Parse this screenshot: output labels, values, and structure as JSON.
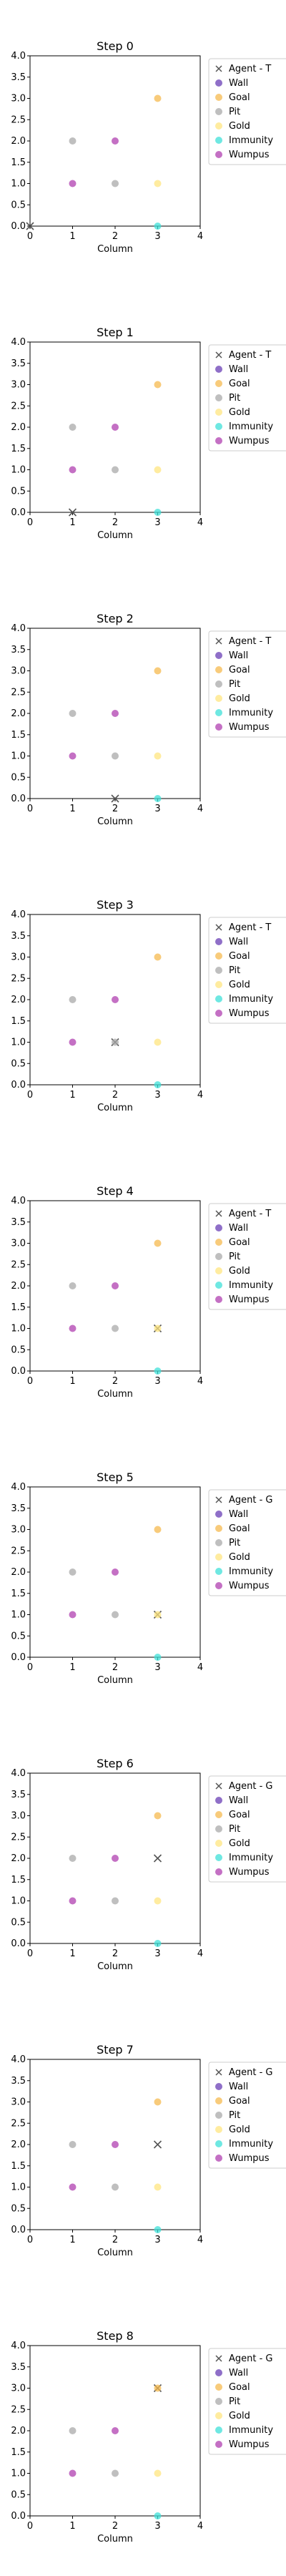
{
  "chart_data": [
    {
      "type": "scatter",
      "title": "Step 0",
      "xlabel": "Column",
      "ylabel": "",
      "xlim": [
        0,
        4
      ],
      "ylim": [
        0,
        4
      ],
      "xticks": [
        "0",
        "1",
        "2",
        "3",
        "4"
      ],
      "yticks": [
        "0.0",
        "0.5",
        "1.0",
        "1.5",
        "2.0",
        "2.5",
        "3.0",
        "3.5",
        "4.0"
      ],
      "legend": {
        "placement": "outside-right-top",
        "entries": [
          "Agent - T",
          "Wall",
          "Goal",
          "Pit",
          "Gold",
          "Immunity",
          "Wumpus"
        ]
      },
      "series": [
        {
          "name": "Agent - T",
          "marker": "x",
          "color": "#555555",
          "points": [
            [
              0,
              0
            ]
          ]
        },
        {
          "name": "Wall",
          "marker": "o",
          "color": "#6a3fb5",
          "points": []
        },
        {
          "name": "Goal",
          "marker": "o",
          "color": "#f5b94f",
          "points": [
            [
              3,
              3
            ]
          ]
        },
        {
          "name": "Pit",
          "marker": "o",
          "color": "#a9a9a9",
          "points": [
            [
              1,
              2
            ],
            [
              2,
              1
            ]
          ]
        },
        {
          "name": "Gold",
          "marker": "o",
          "color": "#ffe680",
          "points": [
            [
              3,
              1
            ]
          ]
        },
        {
          "name": "Immunity",
          "marker": "o",
          "color": "#3fe0d8",
          "points": [
            [
              3,
              0
            ]
          ]
        },
        {
          "name": "Wumpus",
          "marker": "o",
          "color": "#b040b0",
          "points": [
            [
              1,
              1
            ],
            [
              2,
              2
            ]
          ]
        }
      ]
    },
    {
      "type": "scatter",
      "title": "Step 1",
      "xlabel": "Column",
      "ylabel": "",
      "xlim": [
        0,
        4
      ],
      "ylim": [
        0,
        4
      ],
      "xticks": [
        "0",
        "1",
        "2",
        "3",
        "4"
      ],
      "yticks": [
        "0.0",
        "0.5",
        "1.0",
        "1.5",
        "2.0",
        "2.5",
        "3.0",
        "3.5",
        "4.0"
      ],
      "legend": {
        "placement": "outside-right-top",
        "entries": [
          "Agent - T",
          "Wall",
          "Goal",
          "Pit",
          "Gold",
          "Immunity",
          "Wumpus"
        ]
      },
      "series": [
        {
          "name": "Agent - T",
          "marker": "x",
          "color": "#555555",
          "points": [
            [
              1,
              0
            ]
          ]
        },
        {
          "name": "Wall",
          "marker": "o",
          "color": "#6a3fb5",
          "points": []
        },
        {
          "name": "Goal",
          "marker": "o",
          "color": "#f5b94f",
          "points": [
            [
              3,
              3
            ]
          ]
        },
        {
          "name": "Pit",
          "marker": "o",
          "color": "#a9a9a9",
          "points": [
            [
              1,
              2
            ],
            [
              2,
              1
            ]
          ]
        },
        {
          "name": "Gold",
          "marker": "o",
          "color": "#ffe680",
          "points": [
            [
              3,
              1
            ]
          ]
        },
        {
          "name": "Immunity",
          "marker": "o",
          "color": "#3fe0d8",
          "points": [
            [
              3,
              0
            ]
          ]
        },
        {
          "name": "Wumpus",
          "marker": "o",
          "color": "#b040b0",
          "points": [
            [
              1,
              1
            ],
            [
              2,
              2
            ]
          ]
        }
      ]
    },
    {
      "type": "scatter",
      "title": "Step 2",
      "xlabel": "Column",
      "ylabel": "",
      "xlim": [
        0,
        4
      ],
      "ylim": [
        0,
        4
      ],
      "xticks": [
        "0",
        "1",
        "2",
        "3",
        "4"
      ],
      "yticks": [
        "0.0",
        "0.5",
        "1.0",
        "1.5",
        "2.0",
        "2.5",
        "3.0",
        "3.5",
        "4.0"
      ],
      "legend": {
        "placement": "outside-right-top",
        "entries": [
          "Agent - T",
          "Wall",
          "Goal",
          "Pit",
          "Gold",
          "Immunity",
          "Wumpus"
        ]
      },
      "series": [
        {
          "name": "Agent - T",
          "marker": "x",
          "color": "#555555",
          "points": [
            [
              2,
              0
            ]
          ]
        },
        {
          "name": "Wall",
          "marker": "o",
          "color": "#6a3fb5",
          "points": []
        },
        {
          "name": "Goal",
          "marker": "o",
          "color": "#f5b94f",
          "points": [
            [
              3,
              3
            ]
          ]
        },
        {
          "name": "Pit",
          "marker": "o",
          "color": "#a9a9a9",
          "points": [
            [
              1,
              2
            ],
            [
              2,
              1
            ]
          ]
        },
        {
          "name": "Gold",
          "marker": "o",
          "color": "#ffe680",
          "points": [
            [
              3,
              1
            ]
          ]
        },
        {
          "name": "Immunity",
          "marker": "o",
          "color": "#3fe0d8",
          "points": [
            [
              3,
              0
            ]
          ]
        },
        {
          "name": "Wumpus",
          "marker": "o",
          "color": "#b040b0",
          "points": [
            [
              1,
              1
            ],
            [
              2,
              2
            ]
          ]
        }
      ]
    },
    {
      "type": "scatter",
      "title": "Step 3",
      "xlabel": "Column",
      "ylabel": "",
      "xlim": [
        0,
        4
      ],
      "ylim": [
        0,
        4
      ],
      "xticks": [
        "0",
        "1",
        "2",
        "3",
        "4"
      ],
      "yticks": [
        "0.0",
        "0.5",
        "1.0",
        "1.5",
        "2.0",
        "2.5",
        "3.0",
        "3.5",
        "4.0"
      ],
      "legend": {
        "placement": "outside-right-top",
        "entries": [
          "Agent - T",
          "Wall",
          "Goal",
          "Pit",
          "Gold",
          "Immunity",
          "Wumpus"
        ]
      },
      "series": [
        {
          "name": "Agent - T",
          "marker": "x",
          "color": "#555555",
          "points": [
            [
              2,
              1
            ]
          ]
        },
        {
          "name": "Wall",
          "marker": "o",
          "color": "#6a3fb5",
          "points": []
        },
        {
          "name": "Goal",
          "marker": "o",
          "color": "#f5b94f",
          "points": [
            [
              3,
              3
            ]
          ]
        },
        {
          "name": "Pit",
          "marker": "o",
          "color": "#a9a9a9",
          "points": [
            [
              1,
              2
            ],
            [
              2,
              1
            ]
          ]
        },
        {
          "name": "Gold",
          "marker": "o",
          "color": "#ffe680",
          "points": [
            [
              3,
              1
            ]
          ]
        },
        {
          "name": "Immunity",
          "marker": "o",
          "color": "#3fe0d8",
          "points": [
            [
              3,
              0
            ]
          ]
        },
        {
          "name": "Wumpus",
          "marker": "o",
          "color": "#b040b0",
          "points": [
            [
              1,
              1
            ],
            [
              2,
              2
            ]
          ]
        }
      ]
    },
    {
      "type": "scatter",
      "title": "Step 4",
      "xlabel": "Column",
      "ylabel": "",
      "xlim": [
        0,
        4
      ],
      "ylim": [
        0,
        4
      ],
      "xticks": [
        "0",
        "1",
        "2",
        "3",
        "4"
      ],
      "yticks": [
        "0.0",
        "0.5",
        "1.0",
        "1.5",
        "2.0",
        "2.5",
        "3.0",
        "3.5",
        "4.0"
      ],
      "legend": {
        "placement": "outside-right-top",
        "entries": [
          "Agent - T",
          "Wall",
          "Goal",
          "Pit",
          "Gold",
          "Immunity",
          "Wumpus"
        ]
      },
      "series": [
        {
          "name": "Agent - T",
          "marker": "x",
          "color": "#555555",
          "points": [
            [
              3,
              1
            ]
          ]
        },
        {
          "name": "Wall",
          "marker": "o",
          "color": "#6a3fb5",
          "points": []
        },
        {
          "name": "Goal",
          "marker": "o",
          "color": "#f5b94f",
          "points": [
            [
              3,
              3
            ]
          ]
        },
        {
          "name": "Pit",
          "marker": "o",
          "color": "#a9a9a9",
          "points": [
            [
              1,
              2
            ],
            [
              2,
              1
            ]
          ]
        },
        {
          "name": "Gold",
          "marker": "o",
          "color": "#ffe680",
          "points": [
            [
              3,
              1
            ]
          ]
        },
        {
          "name": "Immunity",
          "marker": "o",
          "color": "#3fe0d8",
          "points": [
            [
              3,
              0
            ]
          ]
        },
        {
          "name": "Wumpus",
          "marker": "o",
          "color": "#b040b0",
          "points": [
            [
              1,
              1
            ],
            [
              2,
              2
            ]
          ]
        }
      ]
    },
    {
      "type": "scatter",
      "title": "Step 5",
      "xlabel": "Column",
      "ylabel": "",
      "xlim": [
        0,
        4
      ],
      "ylim": [
        0,
        4
      ],
      "xticks": [
        "0",
        "1",
        "2",
        "3",
        "4"
      ],
      "yticks": [
        "0.0",
        "0.5",
        "1.0",
        "1.5",
        "2.0",
        "2.5",
        "3.0",
        "3.5",
        "4.0"
      ],
      "legend": {
        "placement": "outside-right-top",
        "entries": [
          "Agent - G",
          "Wall",
          "Goal",
          "Pit",
          "Gold",
          "Immunity",
          "Wumpus"
        ]
      },
      "series": [
        {
          "name": "Agent - G",
          "marker": "x",
          "color": "#555555",
          "points": [
            [
              3,
              1
            ]
          ]
        },
        {
          "name": "Wall",
          "marker": "o",
          "color": "#6a3fb5",
          "points": []
        },
        {
          "name": "Goal",
          "marker": "o",
          "color": "#f5b94f",
          "points": [
            [
              3,
              3
            ]
          ]
        },
        {
          "name": "Pit",
          "marker": "o",
          "color": "#a9a9a9",
          "points": [
            [
              1,
              2
            ],
            [
              2,
              1
            ]
          ]
        },
        {
          "name": "Gold",
          "marker": "o",
          "color": "#ffe680",
          "points": [
            [
              3,
              1
            ]
          ]
        },
        {
          "name": "Immunity",
          "marker": "o",
          "color": "#3fe0d8",
          "points": [
            [
              3,
              0
            ]
          ]
        },
        {
          "name": "Wumpus",
          "marker": "o",
          "color": "#b040b0",
          "points": [
            [
              1,
              1
            ],
            [
              2,
              2
            ]
          ]
        }
      ]
    },
    {
      "type": "scatter",
      "title": "Step 6",
      "xlabel": "Column",
      "ylabel": "",
      "xlim": [
        0,
        4
      ],
      "ylim": [
        0,
        4
      ],
      "xticks": [
        "0",
        "1",
        "2",
        "3",
        "4"
      ],
      "yticks": [
        "0.0",
        "0.5",
        "1.0",
        "1.5",
        "2.0",
        "2.5",
        "3.0",
        "3.5",
        "4.0"
      ],
      "legend": {
        "placement": "outside-right-top",
        "entries": [
          "Agent - G",
          "Wall",
          "Goal",
          "Pit",
          "Gold",
          "Immunity",
          "Wumpus"
        ]
      },
      "series": [
        {
          "name": "Agent - G",
          "marker": "x",
          "color": "#555555",
          "points": [
            [
              3,
              2
            ]
          ]
        },
        {
          "name": "Wall",
          "marker": "o",
          "color": "#6a3fb5",
          "points": []
        },
        {
          "name": "Goal",
          "marker": "o",
          "color": "#f5b94f",
          "points": [
            [
              3,
              3
            ]
          ]
        },
        {
          "name": "Pit",
          "marker": "o",
          "color": "#a9a9a9",
          "points": [
            [
              1,
              2
            ],
            [
              2,
              1
            ]
          ]
        },
        {
          "name": "Gold",
          "marker": "o",
          "color": "#ffe680",
          "points": [
            [
              3,
              1
            ]
          ]
        },
        {
          "name": "Immunity",
          "marker": "o",
          "color": "#3fe0d8",
          "points": [
            [
              3,
              0
            ]
          ]
        },
        {
          "name": "Wumpus",
          "marker": "o",
          "color": "#b040b0",
          "points": [
            [
              1,
              1
            ],
            [
              2,
              2
            ]
          ]
        }
      ]
    },
    {
      "type": "scatter",
      "title": "Step 7",
      "xlabel": "Column",
      "ylabel": "",
      "xlim": [
        0,
        4
      ],
      "ylim": [
        0,
        4
      ],
      "xticks": [
        "0",
        "1",
        "2",
        "3",
        "4"
      ],
      "yticks": [
        "0.0",
        "0.5",
        "1.0",
        "1.5",
        "2.0",
        "2.5",
        "3.0",
        "3.5",
        "4.0"
      ],
      "legend": {
        "placement": "outside-right-top",
        "entries": [
          "Agent - G",
          "Wall",
          "Goal",
          "Pit",
          "Gold",
          "Immunity",
          "Wumpus"
        ]
      },
      "series": [
        {
          "name": "Agent - G",
          "marker": "x",
          "color": "#555555",
          "points": [
            [
              3,
              2
            ]
          ]
        },
        {
          "name": "Wall",
          "marker": "o",
          "color": "#6a3fb5",
          "points": []
        },
        {
          "name": "Goal",
          "marker": "o",
          "color": "#f5b94f",
          "points": [
            [
              3,
              3
            ]
          ]
        },
        {
          "name": "Pit",
          "marker": "o",
          "color": "#a9a9a9",
          "points": [
            [
              1,
              2
            ],
            [
              2,
              1
            ]
          ]
        },
        {
          "name": "Gold",
          "marker": "o",
          "color": "#ffe680",
          "points": [
            [
              3,
              1
            ]
          ]
        },
        {
          "name": "Immunity",
          "marker": "o",
          "color": "#3fe0d8",
          "points": [
            [
              3,
              0
            ]
          ]
        },
        {
          "name": "Wumpus",
          "marker": "o",
          "color": "#b040b0",
          "points": [
            [
              1,
              1
            ],
            [
              2,
              2
            ]
          ]
        }
      ]
    },
    {
      "type": "scatter",
      "title": "Step 8",
      "xlabel": "Column",
      "ylabel": "",
      "xlim": [
        0,
        4
      ],
      "ylim": [
        0,
        4
      ],
      "xticks": [
        "0",
        "1",
        "2",
        "3",
        "4"
      ],
      "yticks": [
        "0.0",
        "0.5",
        "1.0",
        "1.5",
        "2.0",
        "2.5",
        "3.0",
        "3.5",
        "4.0"
      ],
      "legend": {
        "placement": "outside-right-top",
        "entries": [
          "Agent - G",
          "Wall",
          "Goal",
          "Pit",
          "Gold",
          "Immunity",
          "Wumpus"
        ]
      },
      "series": [
        {
          "name": "Agent - G",
          "marker": "x",
          "color": "#555555",
          "points": [
            [
              3,
              3
            ]
          ]
        },
        {
          "name": "Wall",
          "marker": "o",
          "color": "#6a3fb5",
          "points": []
        },
        {
          "name": "Goal",
          "marker": "o",
          "color": "#f5b94f",
          "points": [
            [
              3,
              3
            ]
          ]
        },
        {
          "name": "Pit",
          "marker": "o",
          "color": "#a9a9a9",
          "points": [
            [
              1,
              2
            ],
            [
              2,
              1
            ]
          ]
        },
        {
          "name": "Gold",
          "marker": "o",
          "color": "#ffe680",
          "points": [
            [
              3,
              1
            ]
          ]
        },
        {
          "name": "Immunity",
          "marker": "o",
          "color": "#3fe0d8",
          "points": [
            [
              3,
              0
            ]
          ]
        },
        {
          "name": "Wumpus",
          "marker": "o",
          "color": "#b040b0",
          "points": [
            [
              1,
              1
            ],
            [
              2,
              2
            ]
          ]
        }
      ]
    }
  ]
}
